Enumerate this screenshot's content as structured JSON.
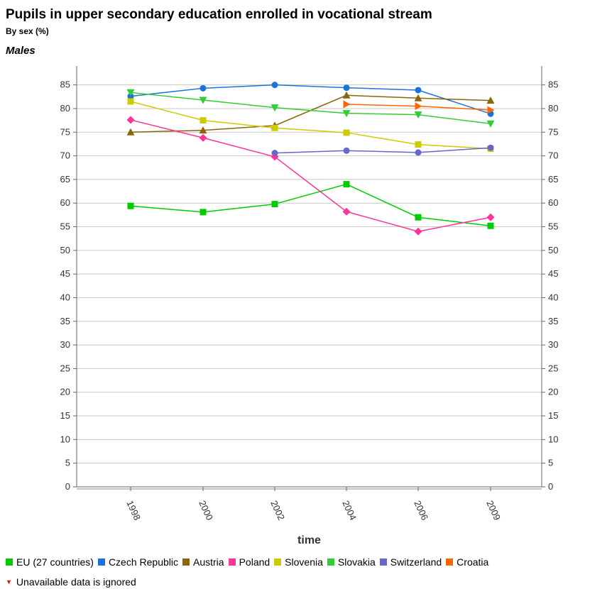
{
  "header": {
    "title": "Pupils in upper secondary education enrolled in vocational stream",
    "subtitle": "By sex (%)",
    "series_title": "Males"
  },
  "note": {
    "marker": "▼",
    "text": "Unavailable data is ignored"
  },
  "chart_data": {
    "type": "line",
    "xlabel": "time",
    "ylabel": "",
    "categories": [
      "1998",
      "2000",
      "2002",
      "2004",
      "2006",
      "2009"
    ],
    "ylim": [
      0,
      89
    ],
    "yticks": [
      0,
      5,
      10,
      15,
      20,
      25,
      30,
      35,
      40,
      45,
      50,
      55,
      60,
      65,
      70,
      75,
      80,
      85
    ],
    "grid": true,
    "legend_position": "bottom",
    "series": [
      {
        "name": "EU (27 countries)",
        "color": "#00cc00",
        "marker": "square",
        "values": [
          59.4,
          58.1,
          59.8,
          64.0,
          57.0,
          55.2
        ]
      },
      {
        "name": "Czech Republic",
        "color": "#1a73d9",
        "marker": "circle",
        "values": [
          82.6,
          84.3,
          85.0,
          84.4,
          83.9,
          78.9
        ]
      },
      {
        "name": "Austria",
        "color": "#8b6508",
        "marker": "triangle-up",
        "values": [
          75.0,
          75.4,
          76.4,
          82.8,
          82.2,
          81.7
        ]
      },
      {
        "name": "Poland",
        "color": "#ff3399",
        "marker": "diamond",
        "values": [
          77.6,
          73.8,
          69.8,
          58.2,
          54.0,
          57.0
        ]
      },
      {
        "name": "Slovenia",
        "color": "#cccc00",
        "marker": "square",
        "values": [
          81.5,
          77.5,
          75.9,
          74.9,
          72.4,
          71.5
        ]
      },
      {
        "name": "Slovakia",
        "color": "#33cc33",
        "marker": "triangle-down",
        "values": [
          83.4,
          81.8,
          80.2,
          79.0,
          78.7,
          76.8
        ]
      },
      {
        "name": "Switzerland",
        "color": "#6666cc",
        "marker": "circle",
        "values": [
          null,
          null,
          70.6,
          71.1,
          70.7,
          71.7
        ]
      },
      {
        "name": "Croatia",
        "color": "#ff6600",
        "marker": "triangle-right",
        "values": [
          null,
          null,
          null,
          80.9,
          80.5,
          79.7
        ]
      }
    ]
  }
}
